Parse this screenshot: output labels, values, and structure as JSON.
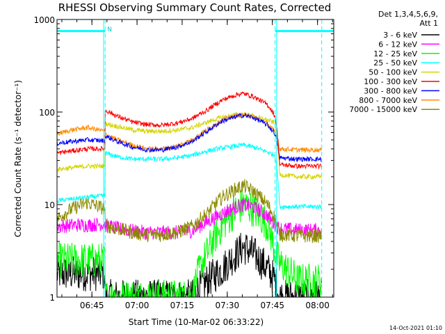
{
  "chart_data": {
    "type": "line",
    "title": "RHESSI Observing Summary Count Rates, Corrected",
    "xlabel": "Start Time (10-Mar-02 06:33:22)",
    "ylabel": "Corrected Count Rate (s⁻¹ detector⁻¹)",
    "yscale": "log",
    "ylim": [
      1,
      1000
    ],
    "xlim_minutes": [
      0,
      92
    ],
    "x_unit": "minutes after 06:33:22",
    "x_ticks": [
      {
        "label": "06:45",
        "minute": 11.6
      },
      {
        "label": "07:00",
        "minute": 26.6
      },
      {
        "label": "07:15",
        "minute": 41.6
      },
      {
        "label": "07:30",
        "minute": 56.6
      },
      {
        "label": "07:45",
        "minute": 71.6
      },
      {
        "label": "08:00",
        "minute": 86.6
      }
    ],
    "y_ticks": [
      {
        "label": "1",
        "value": 1
      },
      {
        "label": "10",
        "value": 10
      },
      {
        "label": "100",
        "value": 100
      },
      {
        "label": "1000",
        "value": 1000
      }
    ],
    "legend_header": [
      "Det 1,3,4,5,6,9,",
      "Att 1"
    ],
    "markers": [
      {
        "type": "vertical-dashed",
        "minute": 16,
        "label": "N"
      },
      {
        "type": "vertical-dashed",
        "minute": 72.5,
        "label": ""
      },
      {
        "type": "vertical-dashed",
        "minute": 88,
        "label": ""
      },
      {
        "type": "vertical-solid",
        "minute": 15.5,
        "label": ""
      },
      {
        "type": "vertical-solid",
        "minute": 73,
        "label": ""
      }
    ],
    "night_bars": [
      {
        "from": 0,
        "to": 16,
        "value": 750
      },
      {
        "from": 72.5,
        "to": 92,
        "value": 750
      }
    ],
    "x": [
      0,
      5,
      10,
      15.9,
      16,
      20,
      25,
      30,
      35,
      40,
      45,
      50,
      55,
      60,
      62,
      65,
      70,
      72.5,
      74,
      80,
      85,
      88
    ],
    "series": [
      {
        "name": "3 - 6 keV",
        "color": "#000000",
        "values": [
          1.8,
          1.8,
          1.8,
          1.8,
          1.0,
          1.0,
          1.0,
          1.0,
          1.0,
          1.0,
          1.0,
          1.5,
          2.0,
          3.0,
          3.5,
          3.0,
          2.0,
          1.5,
          1.0,
          1.0,
          1.0,
          1.0
        ]
      },
      {
        "name": "6 - 12 keV",
        "color": "#ff00ff",
        "values": [
          5.8,
          6.0,
          6.0,
          6.2,
          6.0,
          5.5,
          5.2,
          5.0,
          5.0,
          5.0,
          5.2,
          6.5,
          8.0,
          9.5,
          10.0,
          9.5,
          7.5,
          6.0,
          5.5,
          5.3,
          5.3,
          5.3
        ]
      },
      {
        "name": "12 - 25 keV",
        "color": "#00ff00",
        "values": [
          2.5,
          2.5,
          2.5,
          2.5,
          1.0,
          1.0,
          1.0,
          1.0,
          1.0,
          1.0,
          1.0,
          3.0,
          6.0,
          9.0,
          10.0,
          9.0,
          6.0,
          3.0,
          2.3,
          1.5,
          1.5,
          1.5
        ]
      },
      {
        "name": "25 - 50 keV",
        "color": "#00ffff",
        "values": [
          11.0,
          11.5,
          12.0,
          12.5,
          36.0,
          33.0,
          31.0,
          31.0,
          31.0,
          32.0,
          34.0,
          38.0,
          41.0,
          43.0,
          44.0,
          42.0,
          37.0,
          34.0,
          9.5,
          9.5,
          9.5,
          9.5
        ]
      },
      {
        "name": "50 - 100 keV",
        "color": "#d4d400",
        "values": [
          24.0,
          25.0,
          26.0,
          26.0,
          75.0,
          70.0,
          64.0,
          62.0,
          62.0,
          64.0,
          68.0,
          78.0,
          88.0,
          94.0,
          95.0,
          90.0,
          82.0,
          76.0,
          21.0,
          20.0,
          20.0,
          20.0
        ]
      },
      {
        "name": "100 - 300 keV",
        "color": "#ff0000",
        "values": [
          36.0,
          38.0,
          40.0,
          40.0,
          105.0,
          90.0,
          78.0,
          73.0,
          72.0,
          76.0,
          85.0,
          105.0,
          135.0,
          155.0,
          158.0,
          148.0,
          120.0,
          90.0,
          27.0,
          26.0,
          26.0,
          26.0
        ]
      },
      {
        "name": "300 - 800 keV",
        "color": "#0000ff",
        "values": [
          46.0,
          48.0,
          50.0,
          49.0,
          55.0,
          48.0,
          42.0,
          39.0,
          39.0,
          42.0,
          48.0,
          62.0,
          80.0,
          90.0,
          92.0,
          88.0,
          72.0,
          58.0,
          32.0,
          31.0,
          31.0,
          31.0
        ]
      },
      {
        "name": "800 - 7000 keV",
        "color": "#ff8c00",
        "values": [
          58.0,
          64.0,
          68.0,
          62.0,
          58.0,
          50.0,
          44.0,
          40.0,
          40.0,
          43.0,
          50.0,
          65.0,
          82.0,
          92.0,
          93.0,
          90.0,
          75.0,
          60.0,
          40.0,
          39.0,
          39.0,
          39.0
        ]
      },
      {
        "name": "7000 - 15000 keV",
        "color": "#8b8b00",
        "values": [
          7.0,
          9.0,
          10.5,
          9.0,
          6.0,
          5.5,
          5.0,
          4.7,
          4.7,
          5.0,
          5.8,
          8.0,
          12.0,
          15.0,
          16.0,
          14.0,
          10.0,
          7.0,
          4.8,
          4.6,
          4.6,
          4.6
        ]
      }
    ]
  },
  "timestamp": "14-Oct-2021 01:10"
}
